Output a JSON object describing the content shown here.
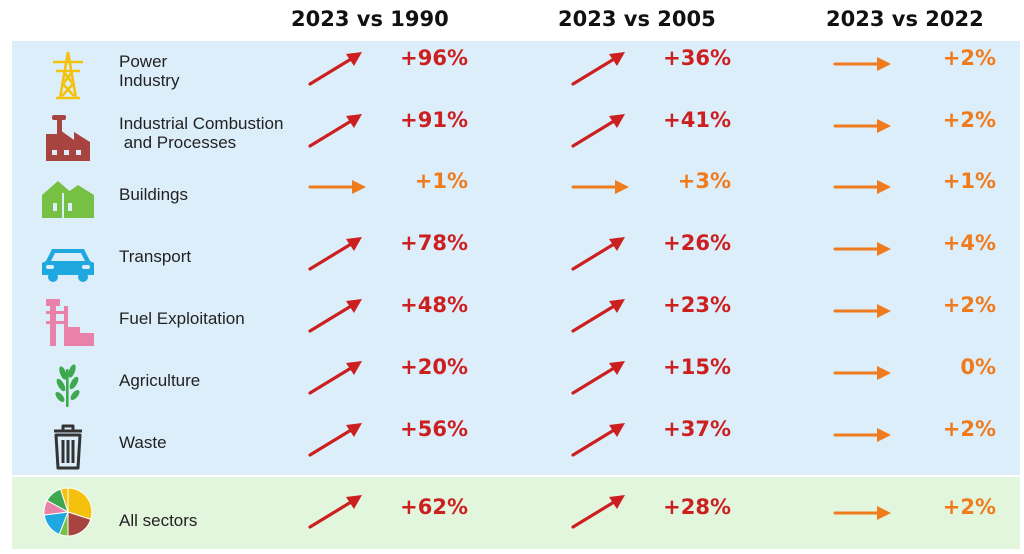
{
  "headers": [
    "2023 vs 1990",
    "2023 vs 2005",
    "2023 vs 2022"
  ],
  "colors": {
    "increase": "#cc1f1f",
    "stable": "#f07b1c",
    "blue_panel": "#ddeefb",
    "green_panel": "#e1f6dd"
  },
  "chart_data": {
    "type": "table",
    "columns": [
      "2023 vs 1990",
      "2023 vs 2005",
      "2023 vs 2022"
    ],
    "rows": [
      {
        "sector": "Power\nIndustry",
        "icon": "power-pylon-icon",
        "values": [
          "+96%",
          "+36%",
          "+2%"
        ],
        "trends": [
          "up",
          "up",
          "flat"
        ]
      },
      {
        "sector": "Industrial Combustion\n and Processes",
        "icon": "factory-icon",
        "values": [
          "+91%",
          "+41%",
          "+2%"
        ],
        "trends": [
          "up",
          "up",
          "flat"
        ]
      },
      {
        "sector": "Buildings",
        "icon": "houses-icon",
        "values": [
          "+1%",
          "+3%",
          "+1%"
        ],
        "trends": [
          "flat",
          "flat",
          "flat"
        ]
      },
      {
        "sector": "Transport",
        "icon": "car-icon",
        "values": [
          "+78%",
          "+26%",
          "+4%"
        ],
        "trends": [
          "up",
          "up",
          "flat"
        ]
      },
      {
        "sector": "Fuel Exploitation",
        "icon": "mine-tower-icon",
        "values": [
          "+48%",
          "+23%",
          "+2%"
        ],
        "trends": [
          "up",
          "up",
          "flat"
        ]
      },
      {
        "sector": "Agriculture",
        "icon": "wheat-icon",
        "values": [
          "+20%",
          "+15%",
          "0%"
        ],
        "trends": [
          "up",
          "up",
          "flat"
        ]
      },
      {
        "sector": "Waste",
        "icon": "trash-bin-icon",
        "values": [
          "+56%",
          "+37%",
          "+2%"
        ],
        "trends": [
          "up",
          "up",
          "flat"
        ]
      },
      {
        "sector": "All sectors",
        "icon": "pie-chart-icon",
        "values": [
          "+62%",
          "+28%",
          "+2%"
        ],
        "trends": [
          "up",
          "up",
          "flat"
        ]
      }
    ]
  }
}
